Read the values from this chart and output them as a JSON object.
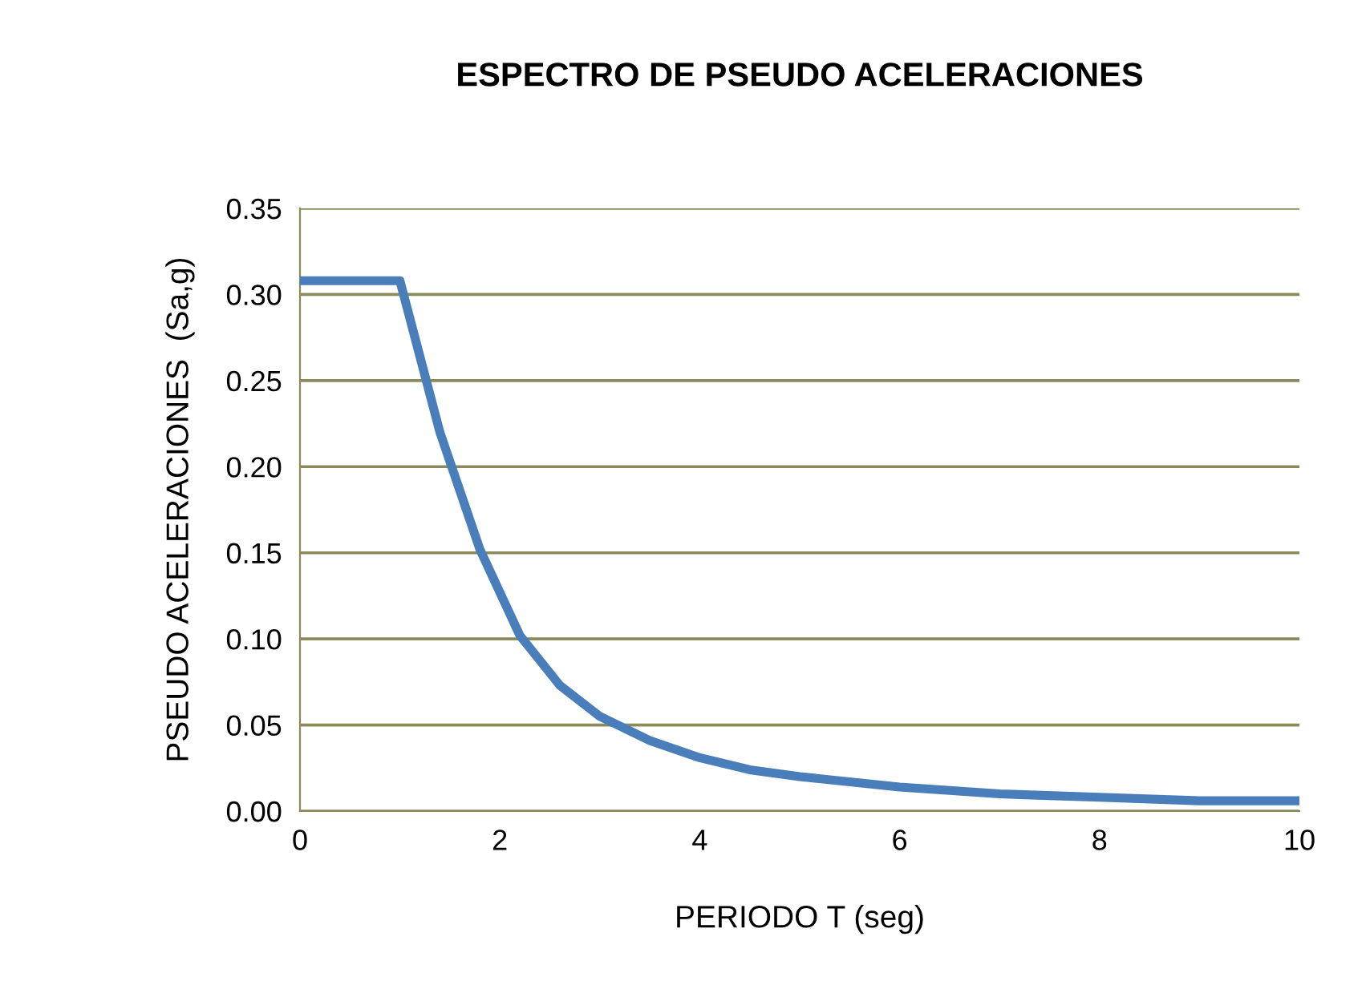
{
  "chart_data": {
    "type": "line",
    "title": "ESPECTRO DE PSEUDO ACELERACIONES",
    "xlabel": "PERIODO T (seg)",
    "ylabel": "PSEUDO ACELERACIONES  (Sa,g)",
    "series": [
      {
        "color": "#4a7ebb",
        "x": [
          0,
          0.5,
          1.0,
          1.4,
          1.8,
          2.2,
          2.6,
          3.0,
          3.5,
          4.0,
          4.5,
          5.0,
          6.0,
          7.0,
          8.0,
          9.0,
          10.0
        ],
        "values": [
          0.308,
          0.308,
          0.308,
          0.22,
          0.152,
          0.102,
          0.073,
          0.055,
          0.041,
          0.031,
          0.024,
          0.02,
          0.014,
          0.01,
          0.008,
          0.006,
          0.006
        ]
      }
    ],
    "xlim": [
      0,
      10
    ],
    "xticks": [
      0,
      2,
      4,
      6,
      8,
      10
    ],
    "ylim": [
      0,
      0.35
    ],
    "yticks": [
      {
        "value": 0,
        "label": "0.00"
      },
      {
        "value": 0.05,
        "label": "0.05"
      },
      {
        "value": 0.1,
        "label": "0.10"
      },
      {
        "value": 0.15,
        "label": "0.15"
      },
      {
        "value": 0.2,
        "label": "0.20"
      },
      {
        "value": 0.25,
        "label": "0.25"
      },
      {
        "value": 0.3,
        "label": "0.30"
      },
      {
        "value": 0.35,
        "label": "0.35"
      }
    ],
    "grid": "y",
    "legend": false,
    "marker": "none",
    "line_style": "solid"
  }
}
